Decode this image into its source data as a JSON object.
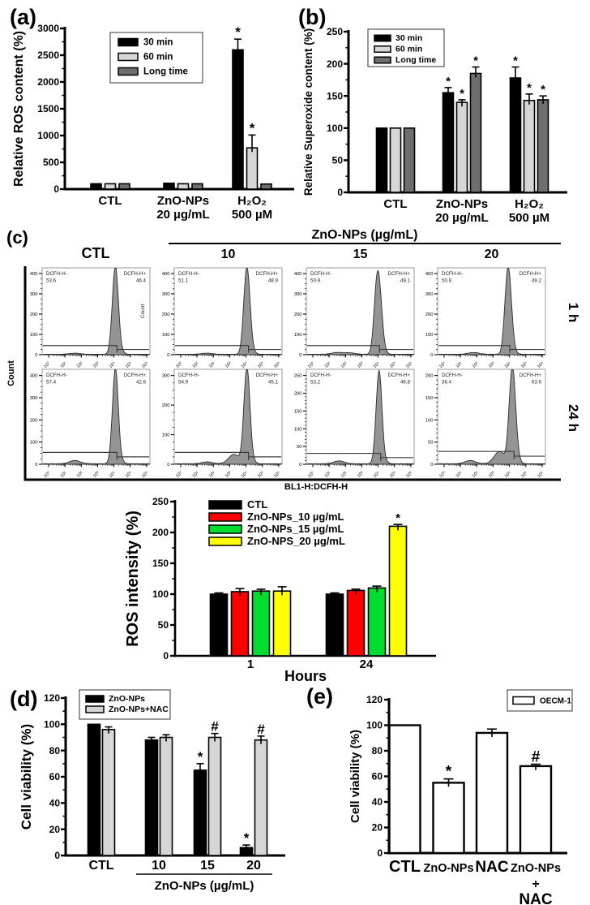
{
  "figure": {
    "background": "#ffffff"
  },
  "chart_data": [
    {
      "id": "a",
      "type": "bar",
      "tag": "(a)",
      "ylabel": "Relative ROS content (%)",
      "xlabel": "",
      "ylim": [
        0,
        3000
      ],
      "ytick_step": 500,
      "yminor_step": 250,
      "grid": false,
      "legend_position": "top-left-inside-boxed",
      "categories": [
        [
          "CTL"
        ],
        [
          "ZnO-NPs",
          "20 µg/mL"
        ],
        [
          "H₂O₂",
          "500 µM"
        ]
      ],
      "series": [
        {
          "name": "30 min",
          "color": "#000000",
          "values": [
            100,
            110,
            2600
          ],
          "errors": [
            0,
            0,
            200
          ],
          "annotations": [
            "",
            "",
            "*"
          ]
        },
        {
          "name": "60 min",
          "color": "#d6d6d6",
          "values": [
            100,
            100,
            770
          ],
          "errors": [
            0,
            0,
            240
          ],
          "annotations": [
            "",
            "",
            "*"
          ]
        },
        {
          "name": "Long time",
          "color": "#6e6e6e",
          "values": [
            100,
            100,
            95
          ],
          "errors": [
            0,
            0,
            0
          ],
          "annotations": [
            "",
            "",
            ""
          ]
        }
      ]
    },
    {
      "id": "b",
      "type": "bar",
      "tag": "(b)",
      "ylabel": "Relative Superoxide content (%)",
      "xlabel": "",
      "ylim": [
        0,
        250
      ],
      "ytick_step": 50,
      "yminor_step": 25,
      "grid": false,
      "legend_position": "top-left-inside-boxed",
      "categories": [
        [
          "CTL"
        ],
        [
          "ZnO-NPs",
          "20 µg/mL"
        ],
        [
          "H₂O₂",
          "500 µM"
        ]
      ],
      "series": [
        {
          "name": "30 min",
          "color": "#000000",
          "values": [
            100,
            155,
            178
          ],
          "errors": [
            0,
            8,
            17
          ],
          "annotations": [
            "",
            "*",
            "*"
          ]
        },
        {
          "name": "60 min",
          "color": "#d6d6d6",
          "values": [
            100,
            140,
            143
          ],
          "errors": [
            0,
            4,
            10
          ],
          "annotations": [
            "",
            "*",
            "*"
          ]
        },
        {
          "name": "Long time",
          "color": "#6e6e6e",
          "values": [
            100,
            185,
            144
          ],
          "errors": [
            0,
            10,
            6
          ],
          "annotations": [
            "",
            "*",
            "*"
          ]
        }
      ]
    },
    {
      "id": "c",
      "type": "flow-histograms",
      "tag": "(c)",
      "header": {
        "ctl": "CTL",
        "group_title": "ZnO-NPs (µg/mL)",
        "doses": [
          "10",
          "15",
          "20"
        ]
      },
      "row_labels": [
        "1 h",
        "24 h"
      ],
      "ylabel": "Count",
      "inner_count_label": "Count",
      "xlabel": "BL1-H:DCFH-H",
      "x_ticks": [
        "10⁰",
        "10¹",
        "10²",
        "10³",
        "10⁴",
        "10⁵",
        "10⁶"
      ],
      "neg_label": "DCFH-H-",
      "pos_label": "DCFH-H+",
      "fill_color": "#949494",
      "cells": [
        [
          {
            "neg": "53.6",
            "pos": "46.4",
            "ymax": 400,
            "ystep": 100,
            "peak_frac": 0.685,
            "peak_top": 0.93,
            "sigma": 0.026,
            "bumps": [
              [
                0.3,
                0.012
              ]
            ],
            "g1": 0.105,
            "g2": 0.06
          },
          {
            "neg": "51.1",
            "pos": "48.9",
            "ymax": 400,
            "ystep": 100,
            "peak_frac": 0.68,
            "peak_top": 0.92,
            "sigma": 0.027,
            "bumps": [
              [
                0.3,
                0.012
              ]
            ],
            "g1": 0.105,
            "g2": 0.06
          },
          {
            "neg": "50.9",
            "pos": "49.1",
            "ymax": 400,
            "ystep": 100,
            "peak_frac": 0.67,
            "peak_top": 0.88,
            "sigma": 0.03,
            "bumps": [
              [
                0.28,
                0.02
              ],
              [
                0.4,
                0.016
              ]
            ],
            "g1": 0.105,
            "g2": 0.06
          },
          {
            "neg": "50.8",
            "pos": "49.2",
            "ymax": 400,
            "ystep": 100,
            "peak_frac": 0.66,
            "peak_top": 0.92,
            "sigma": 0.028,
            "bumps": [
              [
                0.33,
                0.02
              ]
            ],
            "g1": 0.105,
            "g2": 0.06
          }
        ],
        [
          {
            "neg": "57.4",
            "pos": "42.6",
            "ymax": 400,
            "ystep": 100,
            "peak_frac": 0.685,
            "peak_top": 0.92,
            "sigma": 0.025,
            "bumps": [
              [
                0.3,
                0.035
              ]
            ],
            "g1": 0.125,
            "g2": 0.078
          },
          {
            "neg": "54.9",
            "pos": "45.1",
            "ymax": 300,
            "ystep": 100,
            "peak_frac": 0.68,
            "peak_top": 0.93,
            "sigma": 0.026,
            "bumps": [
              [
                0.3,
                0.02
              ],
              [
                0.555,
                0.1
              ]
            ],
            "g1": 0.125,
            "g2": 0.078
          },
          {
            "neg": "53.2",
            "pos": "46.8",
            "ymax": 250,
            "ystep": 50,
            "peak_frac": 0.68,
            "peak_top": 0.9,
            "sigma": 0.025,
            "bumps": [
              [
                0.3,
                0.03
              ]
            ],
            "g1": 0.115,
            "g2": 0.07
          },
          {
            "neg": "36.4",
            "pos": "63.6",
            "ymax": 200,
            "ystep": 50,
            "peak_frac": 0.7,
            "peak_top": 0.93,
            "sigma": 0.028,
            "bumps": [
              [
                0.3,
                0.035
              ],
              [
                0.575,
                0.13
              ]
            ],
            "g1": 0.135,
            "g2": 0.085
          }
        ]
      ]
    },
    {
      "id": "ros",
      "type": "bar",
      "tag": "",
      "ylabel": "ROS intensity (%)",
      "xlabel": "Hours",
      "ylim": [
        0,
        250
      ],
      "ytick_step": 50,
      "yminor_step": 25,
      "grid": false,
      "legend_position": "top-left-inside-unboxed",
      "categories": [
        [
          "1"
        ],
        [
          "24"
        ]
      ],
      "series": [
        {
          "name": "CTL",
          "color": "#000000",
          "values": [
            100,
            100
          ],
          "errors": [
            2,
            2
          ],
          "annotations": [
            "",
            ""
          ]
        },
        {
          "name": "ZnO-NPs_10 µg/mL",
          "color": "#ff0000",
          "values": [
            104,
            106
          ],
          "errors": [
            5,
            2
          ],
          "annotations": [
            "",
            ""
          ]
        },
        {
          "name": "ZnO-NPs_15 µg/mL",
          "color": "#00dd30",
          "values": [
            105,
            110
          ],
          "errors": [
            3,
            3
          ],
          "annotations": [
            "",
            ""
          ]
        },
        {
          "name": "ZnO-NPS_20 µg/mL",
          "color": "#ffff00",
          "values": [
            105,
            210
          ],
          "errors": [
            7,
            3
          ],
          "annotations": [
            "",
            "*"
          ]
        }
      ]
    },
    {
      "id": "d",
      "type": "bar",
      "tag": "(d)",
      "ylabel": "Cell viability (%)",
      "xlabel": "ZnO-NPs (µg/mL)",
      "xlabel_underline_cats": [
        1,
        3
      ],
      "ylim": [
        0,
        120
      ],
      "ytick_step": 20,
      "yminor_step": 10,
      "grid": false,
      "legend_position": "top-left-inside-boxed",
      "categories": [
        [
          "CTL"
        ],
        [
          "10"
        ],
        [
          "15"
        ],
        [
          "20"
        ]
      ],
      "series": [
        {
          "name": "ZnO-NPs",
          "color": "#000000",
          "values": [
            100,
            88,
            65,
            6
          ],
          "errors": [
            0,
            2,
            5,
            2
          ],
          "annotations": [
            "",
            "",
            "*",
            "*"
          ]
        },
        {
          "name": "ZnO-NPs+NAC",
          "color": "#d6d6d6",
          "values": [
            96,
            90,
            90,
            88
          ],
          "errors": [
            2,
            2,
            3,
            3
          ],
          "annotations": [
            "",
            "",
            "#",
            "#"
          ]
        }
      ]
    },
    {
      "id": "e",
      "type": "bar",
      "tag": "(e)",
      "ylabel": "Cell viability (%)",
      "xlabel": "",
      "ylim": [
        0,
        120
      ],
      "ytick_step": 20,
      "yminor_step": 10,
      "grid": false,
      "legend_position": "top-right-inside-boxed",
      "categories": [
        [
          "CTL"
        ],
        [
          "ZnO-NPs"
        ],
        [
          "NAC"
        ],
        [
          "ZnO-NPs",
          "+",
          "NAC"
        ]
      ],
      "series": [
        {
          "name": "OECM-1",
          "color": "#ffffff",
          "values": [
            100,
            55,
            94,
            68
          ],
          "errors": [
            0,
            3,
            3,
            1.5
          ],
          "annotations": [
            "",
            "*",
            "",
            "#"
          ]
        }
      ]
    }
  ]
}
